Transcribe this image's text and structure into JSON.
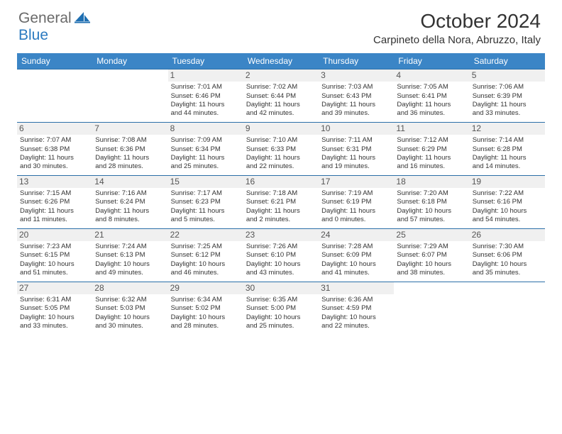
{
  "logo": {
    "text_gray": "General",
    "text_blue": "Blue"
  },
  "title": "October 2024",
  "location": "Carpineto della Nora, Abruzzo, Italy",
  "colors": {
    "header_bg": "#3b85c6",
    "border": "#2b6fa8",
    "daynum_bg": "#f0f0f0",
    "text": "#333333"
  },
  "weekdays": [
    "Sunday",
    "Monday",
    "Tuesday",
    "Wednesday",
    "Thursday",
    "Friday",
    "Saturday"
  ],
  "weeks": [
    [
      {
        "day": "",
        "sunrise": "",
        "sunset": "",
        "daylight1": "",
        "daylight2": ""
      },
      {
        "day": "",
        "sunrise": "",
        "sunset": "",
        "daylight1": "",
        "daylight2": ""
      },
      {
        "day": "1",
        "sunrise": "Sunrise: 7:01 AM",
        "sunset": "Sunset: 6:46 PM",
        "daylight1": "Daylight: 11 hours",
        "daylight2": "and 44 minutes."
      },
      {
        "day": "2",
        "sunrise": "Sunrise: 7:02 AM",
        "sunset": "Sunset: 6:44 PM",
        "daylight1": "Daylight: 11 hours",
        "daylight2": "and 42 minutes."
      },
      {
        "day": "3",
        "sunrise": "Sunrise: 7:03 AM",
        "sunset": "Sunset: 6:43 PM",
        "daylight1": "Daylight: 11 hours",
        "daylight2": "and 39 minutes."
      },
      {
        "day": "4",
        "sunrise": "Sunrise: 7:05 AM",
        "sunset": "Sunset: 6:41 PM",
        "daylight1": "Daylight: 11 hours",
        "daylight2": "and 36 minutes."
      },
      {
        "day": "5",
        "sunrise": "Sunrise: 7:06 AM",
        "sunset": "Sunset: 6:39 PM",
        "daylight1": "Daylight: 11 hours",
        "daylight2": "and 33 minutes."
      }
    ],
    [
      {
        "day": "6",
        "sunrise": "Sunrise: 7:07 AM",
        "sunset": "Sunset: 6:38 PM",
        "daylight1": "Daylight: 11 hours",
        "daylight2": "and 30 minutes."
      },
      {
        "day": "7",
        "sunrise": "Sunrise: 7:08 AM",
        "sunset": "Sunset: 6:36 PM",
        "daylight1": "Daylight: 11 hours",
        "daylight2": "and 28 minutes."
      },
      {
        "day": "8",
        "sunrise": "Sunrise: 7:09 AM",
        "sunset": "Sunset: 6:34 PM",
        "daylight1": "Daylight: 11 hours",
        "daylight2": "and 25 minutes."
      },
      {
        "day": "9",
        "sunrise": "Sunrise: 7:10 AM",
        "sunset": "Sunset: 6:33 PM",
        "daylight1": "Daylight: 11 hours",
        "daylight2": "and 22 minutes."
      },
      {
        "day": "10",
        "sunrise": "Sunrise: 7:11 AM",
        "sunset": "Sunset: 6:31 PM",
        "daylight1": "Daylight: 11 hours",
        "daylight2": "and 19 minutes."
      },
      {
        "day": "11",
        "sunrise": "Sunrise: 7:12 AM",
        "sunset": "Sunset: 6:29 PM",
        "daylight1": "Daylight: 11 hours",
        "daylight2": "and 16 minutes."
      },
      {
        "day": "12",
        "sunrise": "Sunrise: 7:14 AM",
        "sunset": "Sunset: 6:28 PM",
        "daylight1": "Daylight: 11 hours",
        "daylight2": "and 14 minutes."
      }
    ],
    [
      {
        "day": "13",
        "sunrise": "Sunrise: 7:15 AM",
        "sunset": "Sunset: 6:26 PM",
        "daylight1": "Daylight: 11 hours",
        "daylight2": "and 11 minutes."
      },
      {
        "day": "14",
        "sunrise": "Sunrise: 7:16 AM",
        "sunset": "Sunset: 6:24 PM",
        "daylight1": "Daylight: 11 hours",
        "daylight2": "and 8 minutes."
      },
      {
        "day": "15",
        "sunrise": "Sunrise: 7:17 AM",
        "sunset": "Sunset: 6:23 PM",
        "daylight1": "Daylight: 11 hours",
        "daylight2": "and 5 minutes."
      },
      {
        "day": "16",
        "sunrise": "Sunrise: 7:18 AM",
        "sunset": "Sunset: 6:21 PM",
        "daylight1": "Daylight: 11 hours",
        "daylight2": "and 2 minutes."
      },
      {
        "day": "17",
        "sunrise": "Sunrise: 7:19 AM",
        "sunset": "Sunset: 6:19 PM",
        "daylight1": "Daylight: 11 hours",
        "daylight2": "and 0 minutes."
      },
      {
        "day": "18",
        "sunrise": "Sunrise: 7:20 AM",
        "sunset": "Sunset: 6:18 PM",
        "daylight1": "Daylight: 10 hours",
        "daylight2": "and 57 minutes."
      },
      {
        "day": "19",
        "sunrise": "Sunrise: 7:22 AM",
        "sunset": "Sunset: 6:16 PM",
        "daylight1": "Daylight: 10 hours",
        "daylight2": "and 54 minutes."
      }
    ],
    [
      {
        "day": "20",
        "sunrise": "Sunrise: 7:23 AM",
        "sunset": "Sunset: 6:15 PM",
        "daylight1": "Daylight: 10 hours",
        "daylight2": "and 51 minutes."
      },
      {
        "day": "21",
        "sunrise": "Sunrise: 7:24 AM",
        "sunset": "Sunset: 6:13 PM",
        "daylight1": "Daylight: 10 hours",
        "daylight2": "and 49 minutes."
      },
      {
        "day": "22",
        "sunrise": "Sunrise: 7:25 AM",
        "sunset": "Sunset: 6:12 PM",
        "daylight1": "Daylight: 10 hours",
        "daylight2": "and 46 minutes."
      },
      {
        "day": "23",
        "sunrise": "Sunrise: 7:26 AM",
        "sunset": "Sunset: 6:10 PM",
        "daylight1": "Daylight: 10 hours",
        "daylight2": "and 43 minutes."
      },
      {
        "day": "24",
        "sunrise": "Sunrise: 7:28 AM",
        "sunset": "Sunset: 6:09 PM",
        "daylight1": "Daylight: 10 hours",
        "daylight2": "and 41 minutes."
      },
      {
        "day": "25",
        "sunrise": "Sunrise: 7:29 AM",
        "sunset": "Sunset: 6:07 PM",
        "daylight1": "Daylight: 10 hours",
        "daylight2": "and 38 minutes."
      },
      {
        "day": "26",
        "sunrise": "Sunrise: 7:30 AM",
        "sunset": "Sunset: 6:06 PM",
        "daylight1": "Daylight: 10 hours",
        "daylight2": "and 35 minutes."
      }
    ],
    [
      {
        "day": "27",
        "sunrise": "Sunrise: 6:31 AM",
        "sunset": "Sunset: 5:05 PM",
        "daylight1": "Daylight: 10 hours",
        "daylight2": "and 33 minutes."
      },
      {
        "day": "28",
        "sunrise": "Sunrise: 6:32 AM",
        "sunset": "Sunset: 5:03 PM",
        "daylight1": "Daylight: 10 hours",
        "daylight2": "and 30 minutes."
      },
      {
        "day": "29",
        "sunrise": "Sunrise: 6:34 AM",
        "sunset": "Sunset: 5:02 PM",
        "daylight1": "Daylight: 10 hours",
        "daylight2": "and 28 minutes."
      },
      {
        "day": "30",
        "sunrise": "Sunrise: 6:35 AM",
        "sunset": "Sunset: 5:00 PM",
        "daylight1": "Daylight: 10 hours",
        "daylight2": "and 25 minutes."
      },
      {
        "day": "31",
        "sunrise": "Sunrise: 6:36 AM",
        "sunset": "Sunset: 4:59 PM",
        "daylight1": "Daylight: 10 hours",
        "daylight2": "and 22 minutes."
      },
      {
        "day": "",
        "sunrise": "",
        "sunset": "",
        "daylight1": "",
        "daylight2": ""
      },
      {
        "day": "",
        "sunrise": "",
        "sunset": "",
        "daylight1": "",
        "daylight2": ""
      }
    ]
  ]
}
